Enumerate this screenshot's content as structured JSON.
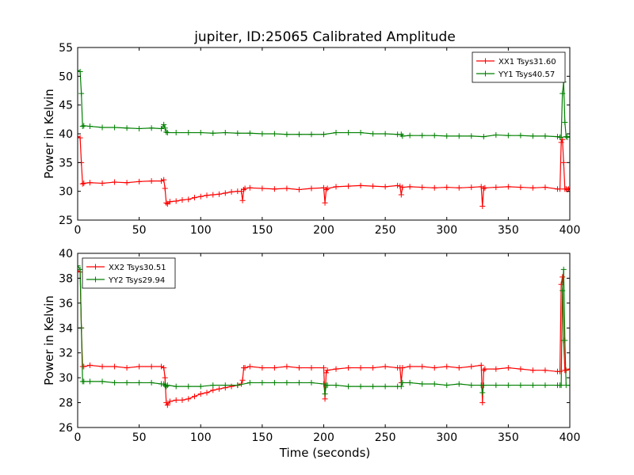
{
  "figure": {
    "title": "jupiter, ID:25065 Calibrated Amplitude",
    "xlabel": "Time (seconds)"
  },
  "chart_data": [
    {
      "type": "line",
      "title": "jupiter, ID:25065 Calibrated Amplitude",
      "xlabel": "",
      "ylabel": "Power in Kelvin",
      "xlim": [
        0,
        400
      ],
      "ylim": [
        25,
        55
      ],
      "xticks": [
        "0",
        "50",
        "100",
        "150",
        "200",
        "250",
        "300",
        "350",
        "400"
      ],
      "yticks": [
        "25",
        "30",
        "35",
        "40",
        "45",
        "50",
        "55"
      ],
      "grid": false,
      "legend_position": "top-right",
      "marker": "+",
      "series": [
        {
          "name": "XX1 Tsys31.60",
          "color": "#ff0000",
          "x": [
            0,
            2,
            3,
            4,
            5,
            10,
            20,
            30,
            40,
            50,
            60,
            68,
            70,
            71,
            72,
            73,
            75,
            80,
            85,
            90,
            95,
            100,
            105,
            110,
            115,
            120,
            125,
            130,
            133,
            134,
            135,
            136,
            140,
            150,
            160,
            170,
            180,
            190,
            200,
            201,
            202,
            203,
            210,
            220,
            230,
            240,
            250,
            260,
            262,
            263,
            264,
            270,
            280,
            290,
            300,
            310,
            320,
            328,
            329,
            330,
            331,
            340,
            350,
            360,
            370,
            380,
            390,
            392,
            393,
            394,
            395,
            396,
            397,
            398,
            399,
            400
          ],
          "y": [
            39.5,
            39.3,
            35,
            31.3,
            31.4,
            31.5,
            31.4,
            31.6,
            31.5,
            31.7,
            31.8,
            31.8,
            32,
            30.5,
            28,
            27.8,
            28.2,
            28.3,
            28.5,
            28.6,
            28.9,
            29.1,
            29.3,
            29.4,
            29.5,
            29.7,
            29.9,
            30,
            30,
            28.4,
            30.3,
            30.5,
            30.6,
            30.5,
            30.4,
            30.5,
            30.3,
            30.5,
            30.6,
            28,
            30.3,
            30.5,
            30.8,
            30.9,
            31,
            30.9,
            30.8,
            31,
            30.9,
            29.4,
            30.7,
            30.8,
            30.7,
            30.6,
            30.7,
            30.6,
            30.7,
            30.8,
            27.4,
            30.5,
            30.6,
            30.7,
            30.8,
            30.7,
            30.6,
            30.7,
            30.4,
            30.4,
            38.5,
            39,
            35,
            30.4,
            30.4,
            30.3,
            30.4,
            30.5
          ]
        },
        {
          "name": "YY1 Tsys40.57",
          "color": "#008000",
          "x": [
            0,
            2,
            3,
            4,
            5,
            10,
            20,
            30,
            40,
            50,
            60,
            68,
            70,
            71,
            72,
            73,
            80,
            90,
            100,
            110,
            120,
            130,
            140,
            150,
            160,
            170,
            180,
            190,
            200,
            210,
            220,
            230,
            240,
            250,
            260,
            263,
            264,
            270,
            280,
            290,
            300,
            310,
            320,
            330,
            340,
            350,
            360,
            370,
            380,
            390,
            392,
            393,
            394,
            395,
            396,
            397,
            398,
            400
          ],
          "y": [
            51,
            50.8,
            47,
            41.3,
            41.4,
            41.3,
            41.1,
            41.1,
            41,
            40.9,
            41,
            40.9,
            41.6,
            41,
            40.3,
            40.2,
            40.2,
            40.2,
            40.2,
            40.1,
            40.2,
            40.1,
            40.1,
            40,
            40,
            39.9,
            39.9,
            39.9,
            39.9,
            40.2,
            40.2,
            40.2,
            40,
            40,
            39.9,
            39.9,
            39.6,
            39.7,
            39.7,
            39.7,
            39.6,
            39.6,
            39.6,
            39.5,
            39.8,
            39.7,
            39.7,
            39.6,
            39.6,
            39.5,
            39.4,
            39.4,
            47,
            49,
            42,
            39.5,
            39.4,
            39.5
          ]
        }
      ]
    },
    {
      "type": "line",
      "title": "",
      "xlabel": "Time (seconds)",
      "ylabel": "Power in Kelvin",
      "xlim": [
        0,
        400
      ],
      "ylim": [
        26,
        40
      ],
      "xticks": [
        "0",
        "50",
        "100",
        "150",
        "200",
        "250",
        "300",
        "350",
        "400"
      ],
      "yticks": [
        "26",
        "28",
        "30",
        "32",
        "34",
        "36",
        "38",
        "40"
      ],
      "grid": false,
      "legend_position": "top-left",
      "marker": "+",
      "series": [
        {
          "name": "XX2 Tsys30.51",
          "color": "#ff0000",
          "x": [
            0,
            2,
            3,
            4,
            5,
            10,
            20,
            30,
            40,
            50,
            60,
            68,
            70,
            71,
            72,
            73,
            75,
            80,
            85,
            90,
            95,
            100,
            105,
            110,
            115,
            120,
            125,
            130,
            133,
            134,
            135,
            136,
            140,
            150,
            160,
            170,
            180,
            190,
            200,
            201,
            202,
            203,
            210,
            220,
            230,
            240,
            250,
            260,
            262,
            263,
            264,
            270,
            280,
            290,
            300,
            310,
            320,
            328,
            329,
            330,
            331,
            340,
            350,
            360,
            370,
            380,
            390,
            392,
            393,
            394,
            395,
            396,
            397,
            400
          ],
          "y": [
            38.6,
            38.5,
            34,
            30.9,
            30.9,
            31,
            30.9,
            30.9,
            30.8,
            30.9,
            30.9,
            30.9,
            30.8,
            30,
            28,
            27.8,
            28.1,
            28.2,
            28.2,
            28.3,
            28.5,
            28.7,
            28.8,
            29,
            29.1,
            29.2,
            29.3,
            29.4,
            29.5,
            29.8,
            30.8,
            30.8,
            30.9,
            30.8,
            30.8,
            30.9,
            30.8,
            30.8,
            30.8,
            28.3,
            30.4,
            30.6,
            30.7,
            30.8,
            30.8,
            30.8,
            30.9,
            30.8,
            30.8,
            29.6,
            30.8,
            30.9,
            30.9,
            30.8,
            30.9,
            30.8,
            30.9,
            31,
            28,
            30.6,
            30.7,
            30.7,
            30.8,
            30.7,
            30.6,
            30.6,
            30.5,
            30.5,
            37.5,
            38.1,
            33,
            30.6,
            30.6,
            30.7
          ]
        },
        {
          "name": "YY2 Tsys29.94",
          "color": "#008000",
          "x": [
            0,
            2,
            3,
            4,
            5,
            10,
            20,
            30,
            40,
            50,
            60,
            68,
            70,
            71,
            72,
            73,
            80,
            90,
            100,
            110,
            120,
            130,
            140,
            150,
            160,
            170,
            180,
            190,
            200,
            201,
            202,
            203,
            210,
            220,
            230,
            240,
            250,
            260,
            263,
            264,
            270,
            280,
            290,
            300,
            310,
            320,
            328,
            329,
            330,
            340,
            350,
            360,
            370,
            380,
            390,
            392,
            393,
            394,
            395,
            396,
            397,
            400
          ],
          "y": [
            39,
            38.7,
            34,
            29.7,
            29.7,
            29.7,
            29.7,
            29.6,
            29.6,
            29.6,
            29.6,
            29.5,
            29.5,
            29.4,
            29.3,
            29.4,
            29.3,
            29.3,
            29.3,
            29.4,
            29.4,
            29.4,
            29.6,
            29.6,
            29.6,
            29.6,
            29.6,
            29.6,
            29.5,
            28.7,
            29.4,
            29.4,
            29.4,
            29.3,
            29.3,
            29.3,
            29.3,
            29.3,
            29.3,
            29.6,
            29.6,
            29.5,
            29.5,
            29.4,
            29.5,
            29.4,
            29.4,
            28.8,
            29.4,
            29.4,
            29.4,
            29.4,
            29.4,
            29.4,
            29.4,
            29.4,
            29.4,
            37,
            38.7,
            33,
            29.4,
            29.4
          ]
        }
      ]
    }
  ]
}
